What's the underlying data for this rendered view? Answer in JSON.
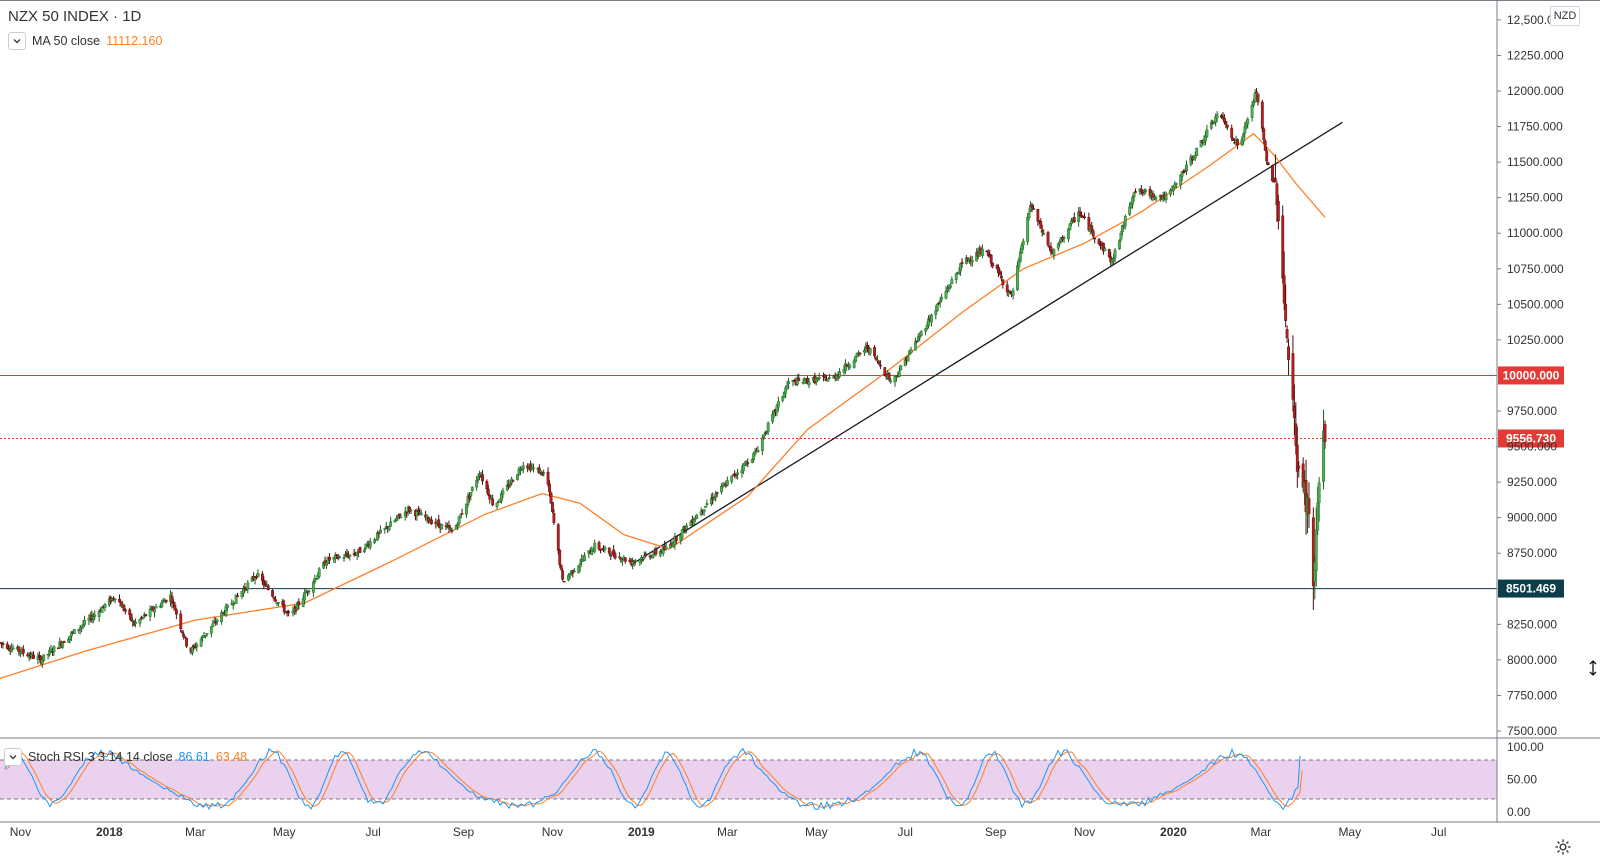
{
  "header": {
    "title": "NZX 50 INDEX · 1D",
    "currency": "NZD",
    "ma_label": "MA 50 close",
    "ma_value": "11112.160"
  },
  "indicator": {
    "label": "Stoch RSI 3 3 14 14 close",
    "k_value": "86.61",
    "d_value": "63.48"
  },
  "colors": {
    "up": "#26a69a",
    "up_body": "#4caf50",
    "down": "#b71c1c",
    "ma": "#ff7f26",
    "red_line": "#e53935",
    "support": "#0b3d4a",
    "stoch_k": "#2196f3",
    "stoch_d": "#ff7f26",
    "stoch_fill": "#e1bee7"
  },
  "icons": [
    "chevron-down-icon",
    "gear-icon",
    "resize-cursor-icon"
  ],
  "chart_data": {
    "type": "candlestick",
    "x_range": [
      "2017-10-18",
      "2020-08-10"
    ],
    "y_range": [
      7450,
      12520
    ],
    "y_ticks": [
      "12,500.000",
      "12250.000",
      "12000.000",
      "11750.000",
      "11500.000",
      "11250.000",
      "11000.000",
      "10750.000",
      "10500.000",
      "10250.000",
      "9750.000",
      "9500.000",
      "9250.000",
      "9000.000",
      "8750.000",
      "8250.000",
      "8000.000",
      "7750.000",
      "7500.000"
    ],
    "x_ticks": [
      "Nov",
      "2018",
      "Mar",
      "May",
      "Jul",
      "Sep",
      "Nov",
      "2019",
      "Mar",
      "May",
      "Jul",
      "Sep",
      "Nov",
      "2020",
      "Mar",
      "May",
      "Jul"
    ],
    "x_tick_bold": [
      false,
      true,
      false,
      false,
      false,
      false,
      false,
      true,
      false,
      false,
      false,
      false,
      false,
      true,
      false,
      false,
      false
    ],
    "price_path": [
      [
        "2017-10-18",
        8120
      ],
      [
        "2017-11-15",
        8000
      ],
      [
        "2017-12-20",
        8300
      ],
      [
        "2018-01-05",
        8450
      ],
      [
        "2018-01-18",
        8250
      ],
      [
        "2018-02-12",
        8450
      ],
      [
        "2018-02-25",
        8050
      ],
      [
        "2018-03-20",
        8330
      ],
      [
        "2018-04-12",
        8600
      ],
      [
        "2018-05-05",
        8300
      ],
      [
        "2018-05-30",
        8700
      ],
      [
        "2018-06-20",
        8750
      ],
      [
        "2018-07-25",
        9060
      ],
      [
        "2018-08-25",
        8900
      ],
      [
        "2018-09-12",
        9320
      ],
      [
        "2018-09-22",
        9080
      ],
      [
        "2018-10-12",
        9380
      ],
      [
        "2018-10-28",
        9300
      ],
      [
        "2018-11-08",
        8550
      ],
      [
        "2018-11-30",
        8800
      ],
      [
        "2018-12-25",
        8690
      ],
      [
        "2019-01-18",
        8780
      ],
      [
        "2019-02-15",
        9100
      ],
      [
        "2019-03-20",
        9450
      ],
      [
        "2019-04-12",
        9950
      ],
      [
        "2019-05-12",
        9980
      ],
      [
        "2019-06-05",
        10200
      ],
      [
        "2019-06-22",
        9950
      ],
      [
        "2019-07-15",
        10350
      ],
      [
        "2019-08-10",
        10800
      ],
      [
        "2019-08-25",
        10880
      ],
      [
        "2019-09-12",
        10550
      ],
      [
        "2019-09-25",
        11200
      ],
      [
        "2019-10-10",
        10850
      ],
      [
        "2019-10-28",
        11150
      ],
      [
        "2019-11-20",
        10800
      ],
      [
        "2019-12-05",
        11300
      ],
      [
        "2019-12-28",
        11250
      ],
      [
        "2020-01-18",
        11600
      ],
      [
        "2020-02-01",
        11850
      ],
      [
        "2020-02-15",
        11600
      ],
      [
        "2020-02-27",
        12000
      ],
      [
        "2020-03-05",
        11500
      ],
      [
        "2020-03-12",
        11300
      ],
      [
        "2020-03-20",
        10100
      ],
      [
        "2020-03-27",
        9300
      ],
      [
        "2020-04-02",
        9100
      ],
      [
        "2020-04-06",
        8520
      ],
      [
        "2020-04-10",
        9250
      ],
      [
        "2020-04-14",
        9590
      ]
    ],
    "ma50": {
      "name": "MA 50 close",
      "points": [
        [
          "2017-10-18",
          7870
        ],
        [
          "2017-12-15",
          8060
        ],
        [
          "2018-03-01",
          8280
        ],
        [
          "2018-05-15",
          8400
        ],
        [
          "2018-07-15",
          8700
        ],
        [
          "2018-09-15",
          9020
        ],
        [
          "2018-10-25",
          9170
        ],
        [
          "2018-11-20",
          9100
        ],
        [
          "2018-12-20",
          8880
        ],
        [
          "2019-01-20",
          8780
        ],
        [
          "2019-03-15",
          9150
        ],
        [
          "2019-04-25",
          9620
        ],
        [
          "2019-06-15",
          10000
        ],
        [
          "2019-08-10",
          10450
        ],
        [
          "2019-09-20",
          10750
        ],
        [
          "2019-11-01",
          10930
        ],
        [
          "2019-12-10",
          11150
        ],
        [
          "2020-01-25",
          11470
        ],
        [
          "2020-02-25",
          11700
        ],
        [
          "2020-03-10",
          11550
        ],
        [
          "2020-03-25",
          11350
        ],
        [
          "2020-04-14",
          11112
        ]
      ]
    },
    "trendline": [
      [
        "2018-12-25",
        8670
      ],
      [
        "2020-04-26",
        11780
      ]
    ],
    "horizontal_lines": [
      {
        "label": "10000.000",
        "value": 10000,
        "style": "solid"
      },
      {
        "label": "9556.730",
        "value": 9556.73,
        "style": "dotted"
      },
      {
        "label": "8501.469",
        "value": 8501.469,
        "style": "solid"
      }
    ],
    "stoch_rsi": {
      "y_range": [
        0,
        100
      ],
      "bands": [
        20,
        80
      ],
      "ticks": [
        "100.00",
        "50.00",
        "0.00"
      ],
      "k": 86.61,
      "d": 63.48
    }
  }
}
